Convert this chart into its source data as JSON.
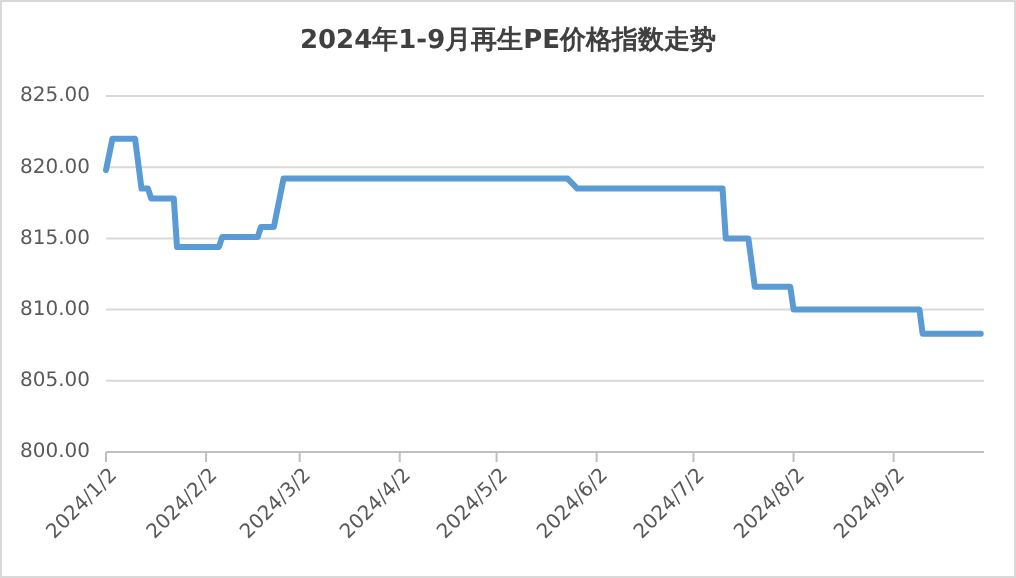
{
  "chart_data": {
    "type": "line",
    "title": "2024年1-9月再生PE价格指数走势",
    "series": [
      {
        "color": "#5b9bd5",
        "x": [
          "2024-01-02",
          "2024-01-04",
          "2024-01-11",
          "2024-01-13",
          "2024-01-15",
          "2024-01-16",
          "2024-01-23",
          "2024-01-24",
          "2024-02-06",
          "2024-02-07",
          "2024-02-18",
          "2024-02-19",
          "2024-02-23",
          "2024-02-26",
          "2024-05-24",
          "2024-05-27",
          "2024-07-11",
          "2024-07-12",
          "2024-07-19",
          "2024-07-21",
          "2024-08-01",
          "2024-08-02",
          "2024-09-10",
          "2024-09-11",
          "2024-09-29"
        ],
        "values": [
          819.8,
          822.0,
          822.0,
          818.5,
          818.5,
          817.8,
          817.8,
          814.4,
          814.4,
          815.1,
          815.1,
          815.8,
          815.8,
          819.2,
          819.2,
          818.5,
          818.5,
          815.0,
          815.0,
          811.6,
          811.6,
          810.0,
          810.0,
          808.3,
          808.3
        ]
      }
    ],
    "xlim": [
      "2024-01-02",
      "2024-09-30"
    ],
    "xticks": [
      {
        "value": "2024-01-02",
        "label": "2024/1/2"
      },
      {
        "value": "2024-02-02",
        "label": "2024/2/2"
      },
      {
        "value": "2024-03-02",
        "label": "2024/3/2"
      },
      {
        "value": "2024-04-02",
        "label": "2024/4/2"
      },
      {
        "value": "2024-05-02",
        "label": "2024/5/2"
      },
      {
        "value": "2024-06-02",
        "label": "2024/6/2"
      },
      {
        "value": "2024-07-02",
        "label": "2024/7/2"
      },
      {
        "value": "2024-08-02",
        "label": "2024/8/2"
      },
      {
        "value": "2024-09-02",
        "label": "2024/9/2"
      }
    ],
    "ylim": [
      800,
      825
    ],
    "yticks": [
      {
        "value": 800,
        "label": "800.00"
      },
      {
        "value": 805,
        "label": "805.00"
      },
      {
        "value": 810,
        "label": "810.00"
      },
      {
        "value": 815,
        "label": "815.00"
      },
      {
        "value": 820,
        "label": "820.00"
      },
      {
        "value": 825,
        "label": "825.00"
      }
    ],
    "grid": "y",
    "marker": "none",
    "line_style": "solid"
  }
}
